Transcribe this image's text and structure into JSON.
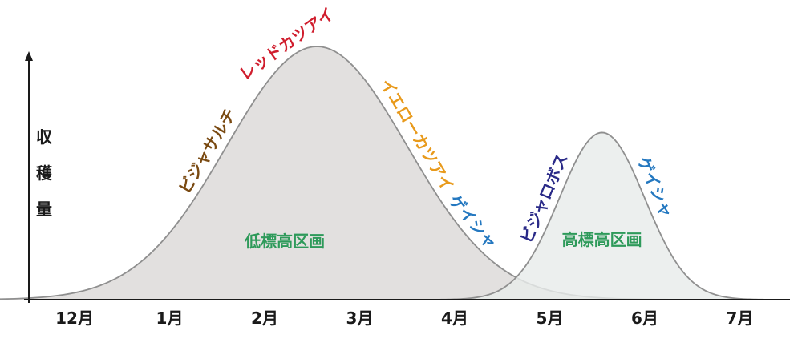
{
  "chart_data": {
    "type": "area",
    "title": "",
    "xlabel": "",
    "ylabel": "収穫量",
    "categories": [
      "12月",
      "1月",
      "2月",
      "3月",
      "4月",
      "5月",
      "6月",
      "7月"
    ],
    "series": [
      {
        "name": "低標高区画",
        "color": "#dcd9d8",
        "peak_month_index": 2.55,
        "spread": 0.95,
        "relative_peak": 1.0
      },
      {
        "name": "高標高区画",
        "color": "#e8ebea",
        "peak_month_index": 5.55,
        "spread": 0.45,
        "relative_peak": 0.66
      }
    ],
    "annotations": [
      {
        "text": "ビジャサルチ",
        "series": "低標高区画",
        "color": "#7a4a12",
        "month_index": 1.5
      },
      {
        "text": "レッドカツアイ",
        "series": "低標高区画",
        "color": "#d01e2e",
        "month_index": 2.3
      },
      {
        "text": "イエローカツアイ",
        "series": "低標高区画",
        "color": "#e89a1c",
        "month_index": 3.5
      },
      {
        "text": "ゲイシャ",
        "series": "低標高区画",
        "color": "#2478c0",
        "month_index": 4.1
      },
      {
        "text": "ビジャロボス",
        "series": "高標高区画",
        "color": "#2a2a88",
        "month_index": 5.05
      },
      {
        "text": "ゲイシャ",
        "series": "高標高区画",
        "color": "#2478c0",
        "month_index": 6.0
      }
    ]
  }
}
